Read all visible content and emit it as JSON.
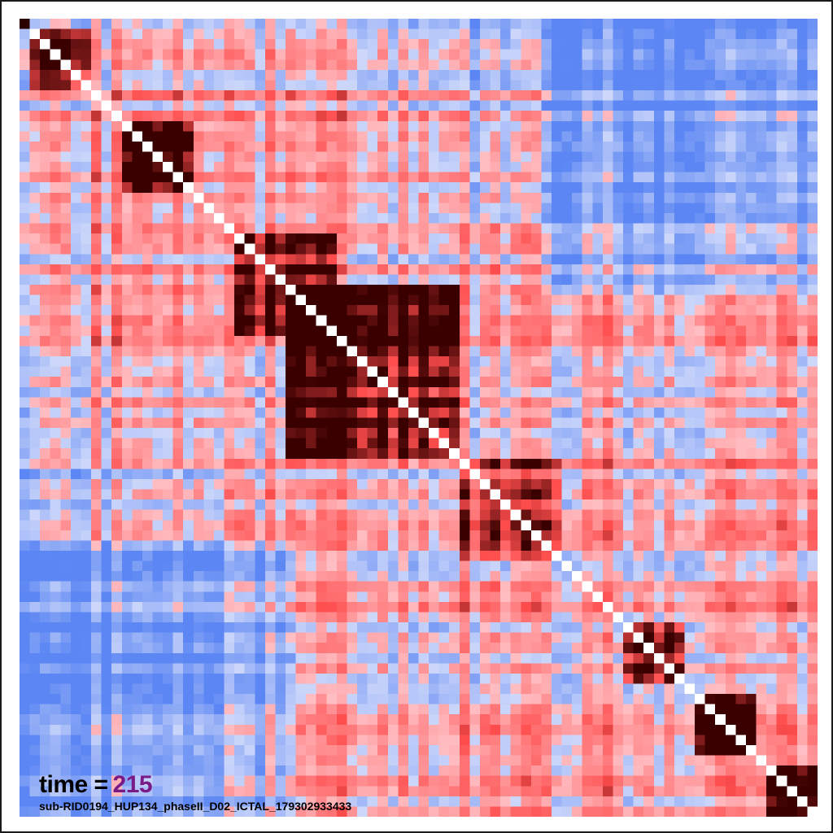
{
  "chart_data": {
    "type": "heatmap",
    "title": "",
    "xlabel": "",
    "ylabel": "",
    "n_channels": 78,
    "colorscale": [
      "#5b86f3",
      "#ffffff",
      "#ff4d4d",
      "#3a0000"
    ],
    "value_range": [
      -1,
      1
    ],
    "diagonal_value": 1.0,
    "blocks": [
      {
        "range": [
          1,
          6
        ],
        "mean": 0.95
      },
      {
        "range": [
          10,
          16
        ],
        "mean": 0.92
      },
      {
        "range": [
          21,
          30
        ],
        "mean": 0.75
      },
      {
        "range": [
          26,
          42
        ],
        "mean": 0.96
      },
      {
        "range": [
          43,
          52
        ],
        "mean": 0.55
      },
      {
        "range": [
          59,
          64
        ],
        "mean": 0.97
      },
      {
        "range": [
          66,
          71
        ],
        "mean": 0.95
      },
      {
        "range": [
          73,
          77
        ],
        "mean": 0.85
      }
    ],
    "grid": false,
    "legend": "none"
  },
  "annotation": {
    "time_label": "time =",
    "time_value": "215",
    "time_value_color": "#7a1a86",
    "subject": "sub-RID0194_HUP134_phaseII_D02_ICTAL_179302933433"
  }
}
